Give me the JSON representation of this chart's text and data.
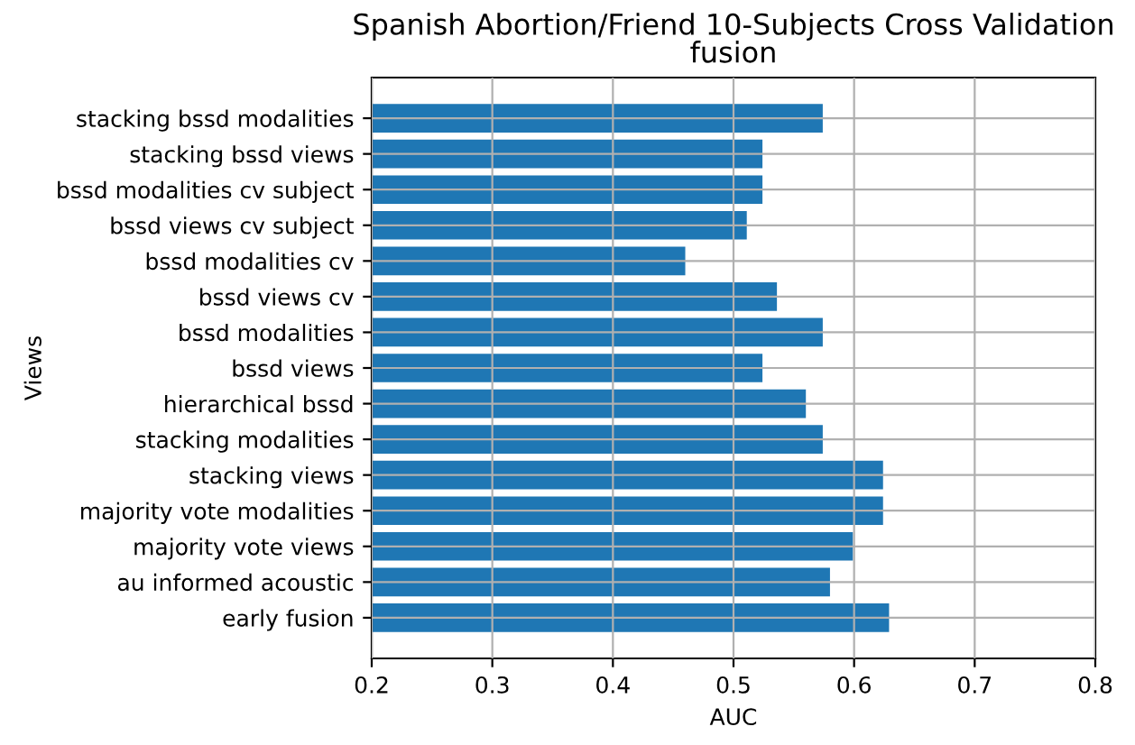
{
  "chart_data": {
    "type": "bar",
    "orientation": "horizontal",
    "title": "Spanish Abortion/Friend 10-Subjects Cross Validation\nfusion",
    "xlabel": "AUC",
    "ylabel": "Views",
    "categories": [
      "stacking bssd modalities",
      "stacking bssd views",
      "bssd modalities cv subject",
      "bssd views cv subject",
      "bssd modalities cv",
      "bssd views cv",
      "bssd modalities",
      "bssd views",
      "hierarchical bssd",
      "stacking modalities",
      "stacking views",
      "majority vote modalities",
      "majority vote views",
      "au informed acoustic",
      "early fusion"
    ],
    "values": [
      0.574,
      0.524,
      0.524,
      0.511,
      0.46,
      0.536,
      0.574,
      0.524,
      0.56,
      0.574,
      0.624,
      0.624,
      0.599,
      0.58,
      0.629
    ],
    "color": "#1f77b4",
    "xlim": [
      0.2,
      0.8
    ],
    "xticks": [
      0.2,
      0.3,
      0.4,
      0.5,
      0.6,
      0.7,
      0.8
    ],
    "grid": true
  }
}
